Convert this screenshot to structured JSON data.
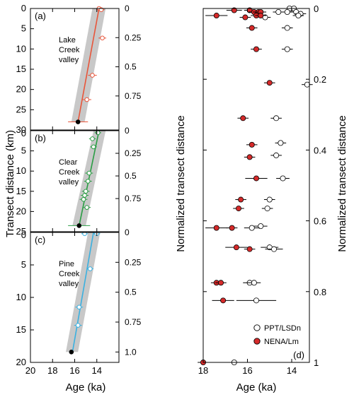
{
  "figure": {
    "left_ylabel": "Transect distance (km)",
    "mid_ylabel": "Normalized transect distance",
    "right_ylabel": "Normalized transect distance",
    "left_xlabel": "Age (ka)",
    "right_xlabel": "Age (ka)"
  },
  "chart_data": [
    {
      "type": "scatter",
      "panel": "(a)",
      "annotation": [
        "Lake",
        "Creek",
        "valley"
      ],
      "color": "#e8553a",
      "xlim": [
        20,
        12
      ],
      "ylim": [
        30,
        0
      ],
      "xticks": [
        20,
        18,
        16,
        14
      ],
      "yticks": [
        0,
        5,
        10,
        15,
        20,
        25,
        30
      ],
      "normalized_ticks": [
        {
          "label": "0",
          "km": 0
        },
        {
          "label": "0.25",
          "km": 7.2
        },
        {
          "label": "0.5",
          "km": 14.4
        },
        {
          "label": "0.75",
          "km": 21.6
        }
      ],
      "fit_line": [
        {
          "age": 13.8,
          "km": 0
        },
        {
          "age": 15.7,
          "km": 28
        }
      ],
      "fit_band": [
        {
          "age": 14.4,
          "km": 0
        },
        {
          "age": 13.2,
          "km": 0
        },
        {
          "age": 15.1,
          "km": 28
        },
        {
          "age": 16.3,
          "km": 28
        }
      ],
      "points": [
        {
          "age": 13.8,
          "km": 0.0,
          "err": 0.3
        },
        {
          "age": 13.6,
          "km": 0.3,
          "err": 0.3
        },
        {
          "age": 13.5,
          "km": 7.3,
          "err": 0.35
        },
        {
          "age": 14.4,
          "km": 16.5,
          "err": 0.4
        },
        {
          "age": 14.9,
          "km": 22.5,
          "err": 0.4
        }
      ],
      "terminus": {
        "age": 15.7,
        "km": 28.0,
        "err": 0.9
      }
    },
    {
      "type": "scatter",
      "panel": "(b)",
      "annotation": [
        "Clear",
        "Creek",
        "valley"
      ],
      "color": "#2a9d44",
      "xlim": [
        20,
        12
      ],
      "ylim": [
        25,
        0
      ],
      "xticks": [
        20,
        18,
        16,
        14
      ],
      "yticks": [
        0,
        5,
        10,
        15,
        20,
        25
      ],
      "normalized_ticks": [
        {
          "label": "0",
          "km": 0
        },
        {
          "label": "0.25",
          "km": 5.6
        },
        {
          "label": "0.5",
          "km": 11.2
        },
        {
          "label": "0.75",
          "km": 16.8
        }
      ],
      "fit_line": [
        {
          "age": 13.8,
          "km": 0
        },
        {
          "age": 15.6,
          "km": 23.5
        }
      ],
      "fit_band": [
        {
          "age": 14.3,
          "km": 0
        },
        {
          "age": 13.2,
          "km": 0
        },
        {
          "age": 15.0,
          "km": 23.5
        },
        {
          "age": 16.2,
          "km": 23.5
        }
      ],
      "points": [
        {
          "age": 13.9,
          "km": 0.5,
          "err": 0.3
        },
        {
          "age": 14.4,
          "km": 2.0,
          "err": 0.3
        },
        {
          "age": 14.3,
          "km": 4.0,
          "err": 0.3
        },
        {
          "age": 14.7,
          "km": 10.5,
          "err": 0.35
        },
        {
          "age": 14.8,
          "km": 12.5,
          "err": 0.35
        },
        {
          "age": 15.0,
          "km": 15.0,
          "err": 0.35
        },
        {
          "age": 15.1,
          "km": 16.0,
          "err": 0.35
        },
        {
          "age": 15.2,
          "km": 17.0,
          "err": 0.35
        },
        {
          "age": 14.9,
          "km": 19.0,
          "err": 0.35
        }
      ],
      "terminus": {
        "age": 15.6,
        "km": 23.5,
        "err": 1.0
      }
    },
    {
      "type": "scatter",
      "panel": "(c)",
      "annotation": [
        "Pine",
        "Creek",
        "valley"
      ],
      "color": "#3ab0e0",
      "xlim": [
        20,
        12
      ],
      "ylim": [
        20,
        0
      ],
      "xticks": [
        20,
        18,
        16,
        14
      ],
      "yticks": [
        0,
        5,
        10,
        15,
        20
      ],
      "normalized_ticks": [
        {
          "label": "0",
          "km": 0
        },
        {
          "label": "0.25",
          "km": 4.6
        },
        {
          "label": "0.5",
          "km": 9.2
        },
        {
          "label": "0.75",
          "km": 13.8
        },
        {
          "label": "1.0",
          "km": 18.4
        }
      ],
      "fit_line": [
        {
          "age": 14.3,
          "km": 0
        },
        {
          "age": 16.2,
          "km": 18.4
        }
      ],
      "fit_band": [
        {
          "age": 14.8,
          "km": 0
        },
        {
          "age": 13.7,
          "km": 0
        },
        {
          "age": 15.7,
          "km": 18.4
        },
        {
          "age": 16.8,
          "km": 18.4
        }
      ],
      "points": [
        {
          "age": 15.1,
          "km": 0.2,
          "err": 0.3
        },
        {
          "age": 14.0,
          "km": 0.2,
          "err": 0.3
        },
        {
          "age": 14.6,
          "km": 5.6,
          "err": 0.3
        },
        {
          "age": 15.6,
          "km": 11.5,
          "err": 0.35
        },
        {
          "age": 15.7,
          "km": 14.3,
          "err": 0.35
        }
      ],
      "terminus": {
        "age": 16.3,
        "km": 18.4,
        "err": 0.2
      }
    },
    {
      "type": "scatter",
      "panel": "(d)",
      "xlim": [
        18,
        13.2
      ],
      "ylim": [
        1.0,
        0
      ],
      "xticks": [
        18,
        16,
        14
      ],
      "yticks": [
        0,
        0.2,
        0.4,
        0.6,
        0.8,
        1.0
      ],
      "legend": {
        "position": "bottom-right",
        "entries": [
          "PPT/LSDn",
          "NENA/Lm"
        ]
      },
      "series": [
        {
          "name": "PPT/LSDn",
          "marker": "open",
          "points": [
            {
              "age": 14.1,
              "y": 0.0,
              "err": 0.25
            },
            {
              "age": 13.9,
              "y": 0.0,
              "err": 0.25
            },
            {
              "age": 13.8,
              "y": 0.01,
              "err": 0.25
            },
            {
              "age": 14.2,
              "y": 0.01,
              "err": 0.25
            },
            {
              "age": 13.6,
              "y": 0.015,
              "err": 0.25
            },
            {
              "age": 14.6,
              "y": 0.01,
              "err": 0.25
            },
            {
              "age": 13.7,
              "y": 0.02,
              "err": 0.25
            },
            {
              "age": 15.2,
              "y": 0.025,
              "err": 0.25
            },
            {
              "age": 14.2,
              "y": 0.055,
              "err": 0.25
            },
            {
              "age": 14.2,
              "y": 0.115,
              "err": 0.25
            },
            {
              "age": 13.3,
              "y": 0.215,
              "err": 0.25
            },
            {
              "age": 14.7,
              "y": 0.31,
              "err": 0.25
            },
            {
              "age": 14.5,
              "y": 0.38,
              "err": 0.25
            },
            {
              "age": 14.7,
              "y": 0.415,
              "err": 0.25
            },
            {
              "age": 14.4,
              "y": 0.48,
              "err": 0.3
            },
            {
              "age": 15.0,
              "y": 0.54,
              "err": 0.25
            },
            {
              "age": 15.1,
              "y": 0.565,
              "err": 0.25
            },
            {
              "age": 15.4,
              "y": 0.615,
              "err": 0.3
            },
            {
              "age": 15.8,
              "y": 0.62,
              "err": 0.35
            },
            {
              "age": 15.0,
              "y": 0.675,
              "err": 0.4
            },
            {
              "age": 14.8,
              "y": 0.68,
              "err": 0.4
            },
            {
              "age": 15.9,
              "y": 0.775,
              "err": 0.3
            },
            {
              "age": 15.7,
              "y": 0.775,
              "err": 0.3
            },
            {
              "age": 15.6,
              "y": 0.825,
              "err": 0.9
            },
            {
              "age": 16.6,
              "y": 1.0,
              "err": 0.3
            }
          ]
        },
        {
          "name": "NENA/Lm",
          "marker": "filled",
          "color": "#d62a2a",
          "points": [
            {
              "age": 16.6,
              "y": 0.005,
              "err": 0.35
            },
            {
              "age": 15.9,
              "y": 0.005,
              "err": 0.25
            },
            {
              "age": 15.7,
              "y": 0.01,
              "err": 0.25
            },
            {
              "age": 15.5,
              "y": 0.01,
              "err": 0.25
            },
            {
              "age": 15.4,
              "y": 0.01,
              "err": 0.25
            },
            {
              "age": 15.6,
              "y": 0.02,
              "err": 0.25
            },
            {
              "age": 17.4,
              "y": 0.02,
              "err": 0.5
            },
            {
              "age": 16.1,
              "y": 0.025,
              "err": 0.25
            },
            {
              "age": 15.4,
              "y": 0.02,
              "err": 0.25
            },
            {
              "age": 15.8,
              "y": 0.055,
              "err": 0.25
            },
            {
              "age": 15.6,
              "y": 0.115,
              "err": 0.25
            },
            {
              "age": 15.0,
              "y": 0.21,
              "err": 0.25
            },
            {
              "age": 16.2,
              "y": 0.31,
              "err": 0.25
            },
            {
              "age": 15.8,
              "y": 0.385,
              "err": 0.25
            },
            {
              "age": 15.9,
              "y": 0.42,
              "err": 0.25
            },
            {
              "age": 15.6,
              "y": 0.48,
              "err": 0.5
            },
            {
              "age": 16.3,
              "y": 0.54,
              "err": 0.25
            },
            {
              "age": 16.4,
              "y": 0.565,
              "err": 0.25
            },
            {
              "age": 17.4,
              "y": 0.62,
              "err": 0.5
            },
            {
              "age": 16.7,
              "y": 0.62,
              "err": 0.25
            },
            {
              "age": 16.5,
              "y": 0.675,
              "err": 0.5
            },
            {
              "age": 15.9,
              "y": 0.68,
              "err": 0.25
            },
            {
              "age": 17.4,
              "y": 0.775,
              "err": 0.25
            },
            {
              "age": 17.2,
              "y": 0.775,
              "err": 0.25
            },
            {
              "age": 17.1,
              "y": 0.825,
              "err": 0.5
            },
            {
              "age": 18.0,
              "y": 1.0,
              "err": 0.25
            }
          ]
        }
      ]
    }
  ]
}
